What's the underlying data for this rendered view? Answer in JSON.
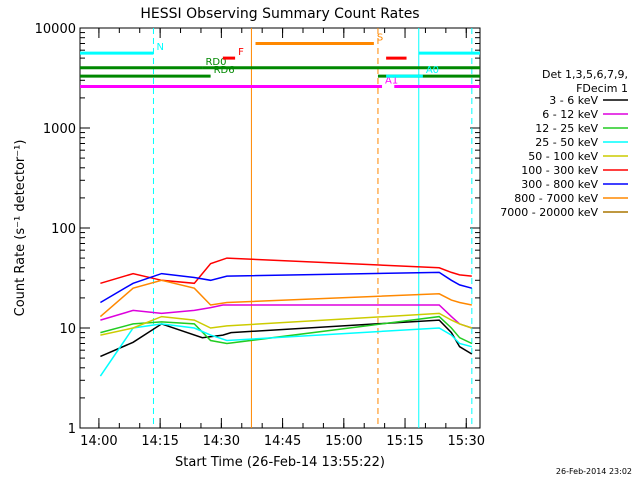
{
  "chart_data": {
    "type": "line",
    "title": "HESSI Observing Summary Count Rates",
    "xlabel": "Start Time (26-Feb-14 13:55:22)",
    "ylabel": "Count Rate (s⁻¹ detector⁻¹)",
    "ylog": true,
    "ylim": [
      1,
      10000
    ],
    "xlim_minutes": [
      0,
      98
    ],
    "x_ticks": [
      "14:00",
      "14:15",
      "14:30",
      "14:45",
      "15:00",
      "15:15",
      "15:30"
    ],
    "y_ticks": [
      "1",
      "10",
      "100",
      "1000",
      "10000"
    ],
    "legend_header": [
      "Det 1,3,5,6,7,9,",
      "FDecim 1"
    ],
    "series": [
      {
        "name": "3 - 6 keV",
        "color": "#000000",
        "points": [
          [
            5,
            5.2
          ],
          [
            13,
            7.2
          ],
          [
            20,
            11
          ],
          [
            30,
            8
          ],
          [
            35,
            8.5
          ],
          [
            37,
            9
          ],
          [
            88,
            12
          ],
          [
            91,
            9
          ],
          [
            93,
            6.5
          ],
          [
            96,
            5.5
          ]
        ]
      },
      {
        "name": "6 - 12 keV",
        "color": "#dd00dd",
        "points": [
          [
            5,
            12
          ],
          [
            13,
            15
          ],
          [
            20,
            14
          ],
          [
            28,
            15
          ],
          [
            32,
            16
          ],
          [
            35,
            17
          ],
          [
            88,
            17
          ],
          [
            91,
            13
          ],
          [
            93,
            11
          ],
          [
            96,
            10
          ]
        ]
      },
      {
        "name": "12 - 25 keV",
        "color": "#22cc22",
        "points": [
          [
            5,
            9
          ],
          [
            13,
            11
          ],
          [
            20,
            11.5
          ],
          [
            28,
            11
          ],
          [
            32,
            7.5
          ],
          [
            36,
            7
          ],
          [
            88,
            13
          ],
          [
            91,
            10
          ],
          [
            93,
            8
          ],
          [
            96,
            7
          ]
        ]
      },
      {
        "name": "25 - 50 keV",
        "color": "#00ffff",
        "points": [
          [
            5,
            3.3
          ],
          [
            13,
            10
          ],
          [
            20,
            11
          ],
          [
            28,
            10
          ],
          [
            32,
            8.5
          ],
          [
            36,
            7.5
          ],
          [
            88,
            10
          ],
          [
            91,
            8.5
          ],
          [
            93,
            7
          ],
          [
            96,
            6.5
          ]
        ]
      },
      {
        "name": "50 - 100 keV",
        "color": "#cccc00",
        "points": [
          [
            5,
            8.5
          ],
          [
            13,
            10
          ],
          [
            20,
            13
          ],
          [
            28,
            12
          ],
          [
            32,
            10
          ],
          [
            36,
            10.5
          ],
          [
            88,
            14
          ],
          [
            91,
            12
          ],
          [
            93,
            11
          ],
          [
            96,
            10
          ]
        ]
      },
      {
        "name": "100 - 300 keV",
        "color": "#ff0000",
        "points": [
          [
            5,
            28
          ],
          [
            13,
            35
          ],
          [
            20,
            30
          ],
          [
            28,
            28
          ],
          [
            32,
            44
          ],
          [
            36,
            50
          ],
          [
            88,
            40
          ],
          [
            91,
            36
          ],
          [
            93,
            34
          ],
          [
            96,
            33
          ]
        ]
      },
      {
        "name": "300 - 800 keV",
        "color": "#0000ff",
        "points": [
          [
            5,
            18
          ],
          [
            13,
            28
          ],
          [
            20,
            35
          ],
          [
            28,
            32
          ],
          [
            32,
            30
          ],
          [
            36,
            33
          ],
          [
            88,
            36
          ],
          [
            91,
            30
          ],
          [
            93,
            27
          ],
          [
            96,
            25
          ]
        ]
      },
      {
        "name": "800 - 7000 keV",
        "color": "#ff8800",
        "points": [
          [
            5,
            13
          ],
          [
            13,
            25
          ],
          [
            20,
            30
          ],
          [
            28,
            25
          ],
          [
            32,
            17
          ],
          [
            36,
            18
          ],
          [
            88,
            22
          ],
          [
            91,
            19
          ],
          [
            93,
            18
          ],
          [
            96,
            17
          ]
        ]
      },
      {
        "name": "7000 - 20000 keV",
        "color": "#aa7700",
        "points": []
      }
    ],
    "annotations": [
      {
        "text": "N",
        "color": "#00ffff",
        "level": 5600,
        "x": [
          0,
          18
        ],
        "x2": [
          83,
          98
        ]
      },
      {
        "text": "RD0",
        "color": "#008800",
        "level": 4000,
        "x": [
          0,
          30
        ],
        "x2": [
          30,
          98
        ]
      },
      {
        "text": "RD6",
        "color": "#008800",
        "level": 3300,
        "x": [
          0,
          32
        ],
        "x2": [
          73,
          98
        ]
      },
      {
        "text": "F",
        "color": "#ff0000",
        "level": 5000,
        "x": [
          35,
          38
        ],
        "x2": [
          75,
          80
        ]
      },
      {
        "text": "S",
        "color": "#ff8800",
        "level": 7000,
        "x": [
          43,
          72
        ]
      },
      {
        "text": "A1",
        "color": "#ff00ff",
        "level": 2600,
        "x": [
          0,
          74
        ],
        "x2": [
          77,
          98
        ]
      },
      {
        "text": "A0",
        "color": "#00ffff",
        "level": 3300,
        "x": [
          75,
          84
        ]
      }
    ],
    "vertical_markers": [
      {
        "x": 18,
        "color": "#00ffff",
        "style": "dashed"
      },
      {
        "x": 42,
        "color": "#ff8800",
        "style": "solid"
      },
      {
        "x": 73,
        "color": "#ff8800",
        "style": "dashed"
      },
      {
        "x": 83,
        "color": "#00ffff",
        "style": "solid"
      },
      {
        "x": 96,
        "color": "#00ffff",
        "style": "dashed"
      }
    ]
  },
  "footer_date": "26-Feb-2014 23:02"
}
